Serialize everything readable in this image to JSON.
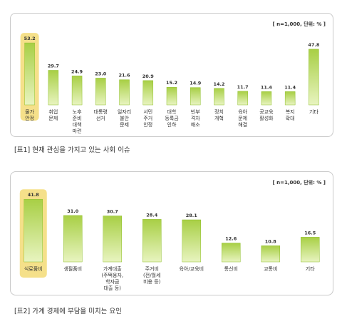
{
  "charts": [
    {
      "unit_label": "[ n=1,000, 단위: % ]",
      "caption": "[표1] 현재 관심을 가지고 있는 사회 이슈"
    },
    {
      "unit_label": "[ n=1,000, 단위: % ]",
      "caption": "[표2] 가계 경제에 부담을 미치는 요인"
    }
  ],
  "chart_data": [
    {
      "type": "bar",
      "categories": [
        "물가\n안정",
        "취업\n문제",
        "노후\n준비\n대책\n마련",
        "대통령\n선거",
        "일자리\n불안\n문제",
        "서민\n주거\n안정",
        "대학\n등록금\n인하",
        "빈부\n격차\n해소",
        "정치\n개혁",
        "육아\n문제\n해결",
        "공교육\n활성화",
        "복지\n확대",
        "기타"
      ],
      "values": [
        53.2,
        29.7,
        24.9,
        23.0,
        21.6,
        20.9,
        15.2,
        14.9,
        14.2,
        11.7,
        11.4,
        11.4,
        47.8
      ],
      "highlight_index": 0,
      "colors": {
        "bar_top": "#a8cf45",
        "bar_bottom": "#e8f4c0",
        "highlight": "#f5e08a"
      },
      "ylim": [
        0,
        60
      ]
    },
    {
      "type": "bar",
      "categories": [
        "식료품비",
        "생필품비",
        "가계대출\n(주택융자,\n학자금\n대출 등)",
        "주거비\n(전/월세\n비용 등)",
        "육아/교육비",
        "통신비",
        "교통비",
        "기타"
      ],
      "values": [
        41.8,
        31.0,
        30.7,
        28.4,
        28.1,
        12.6,
        10.8,
        16.5
      ],
      "highlight_index": 0,
      "colors": {
        "bar_top": "#a8cf45",
        "bar_bottom": "#e8f4c0",
        "highlight": "#f5e08a"
      },
      "ylim": [
        0,
        50
      ]
    }
  ]
}
